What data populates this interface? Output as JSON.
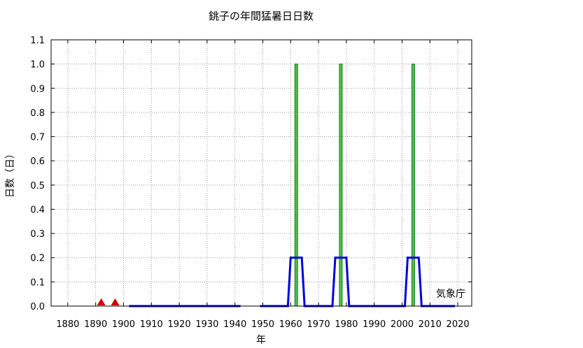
{
  "chart_data": {
    "type": "bar",
    "title": "銚子の年間猛暑日日数",
    "xlabel": "年",
    "ylabel": "日数（日）",
    "credit": "気象庁",
    "xlim": [
      1874,
      2025
    ],
    "ylim": [
      0,
      1.1
    ],
    "x_ticks": [
      1880,
      1890,
      1900,
      1910,
      1920,
      1930,
      1940,
      1950,
      1960,
      1970,
      1980,
      1990,
      2000,
      2010,
      2020
    ],
    "y_ticks": [
      0.0,
      0.1,
      0.2,
      0.3,
      0.4,
      0.5,
      0.6,
      0.7,
      0.8,
      0.9,
      1.0,
      1.1
    ],
    "grid": true,
    "series": [
      {
        "kind": "bar",
        "color": "#4dbf4d",
        "points": [
          {
            "x": 1962,
            "y": 1
          },
          {
            "x": 1978,
            "y": 1
          },
          {
            "x": 2004,
            "y": 1
          }
        ]
      },
      {
        "kind": "line",
        "color": "#0000dd",
        "segments": [
          [
            {
              "x": 1902,
              "y": 0
            },
            {
              "x": 1942,
              "y": 0
            }
          ],
          [
            {
              "x": 1949,
              "y": 0
            },
            {
              "x": 1959,
              "y": 0
            },
            {
              "x": 1960,
              "y": 0.2
            },
            {
              "x": 1964,
              "y": 0.2
            },
            {
              "x": 1965,
              "y": 0
            },
            {
              "x": 1975,
              "y": 0
            },
            {
              "x": 1976,
              "y": 0.2
            },
            {
              "x": 1980,
              "y": 0.2
            },
            {
              "x": 1981,
              "y": 0
            },
            {
              "x": 2001,
              "y": 0
            },
            {
              "x": 2002,
              "y": 0.2
            },
            {
              "x": 2006,
              "y": 0.2
            },
            {
              "x": 2007,
              "y": 0
            },
            {
              "x": 2019,
              "y": 0
            }
          ]
        ]
      },
      {
        "kind": "marker",
        "marker": "triangle",
        "color": "#cc0000",
        "points": [
          {
            "x": 1892,
            "y": 0
          },
          {
            "x": 1897,
            "y": 0
          }
        ]
      }
    ]
  }
}
